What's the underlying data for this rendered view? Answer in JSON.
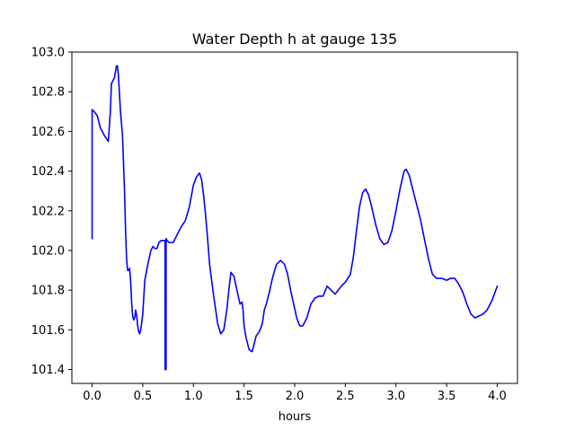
{
  "chart_data": {
    "type": "line",
    "title": "Water Depth h at gauge 135",
    "xlabel": "hours",
    "ylabel": "",
    "xlim": [
      -0.2,
      4.2
    ],
    "ylim": [
      101.33,
      103.0
    ],
    "xticks": [
      0.0,
      0.5,
      1.0,
      1.5,
      2.0,
      2.5,
      3.0,
      3.5,
      4.0
    ],
    "xtick_labels": [
      "0.0",
      "0.5",
      "1.0",
      "1.5",
      "2.0",
      "2.5",
      "3.0",
      "3.5",
      "4.0"
    ],
    "yticks": [
      101.4,
      101.6,
      101.8,
      102.0,
      102.2,
      102.4,
      102.6,
      102.8,
      103.0
    ],
    "ytick_labels": [
      "101.4",
      "101.6",
      "101.8",
      "102.0",
      "102.2",
      "102.4",
      "102.6",
      "102.8",
      "103.0"
    ],
    "grid": false,
    "series": [
      {
        "color": "#0000ff",
        "x": [
          0.0,
          0.0,
          0.02,
          0.05,
          0.08,
          0.12,
          0.16,
          0.18,
          0.19,
          0.2,
          0.22,
          0.24,
          0.25,
          0.26,
          0.28,
          0.3,
          0.32,
          0.33,
          0.34,
          0.35,
          0.36,
          0.37,
          0.38,
          0.39,
          0.4,
          0.41,
          0.42,
          0.43,
          0.44,
          0.45,
          0.46,
          0.47,
          0.48,
          0.5,
          0.52,
          0.55,
          0.58,
          0.6,
          0.62,
          0.64,
          0.66,
          0.68,
          0.7,
          0.72,
          0.72,
          0.73,
          0.73,
          0.74,
          0.76,
          0.8,
          0.84,
          0.88,
          0.92,
          0.96,
          1.0,
          1.03,
          1.06,
          1.08,
          1.1,
          1.12,
          1.14,
          1.16,
          1.2,
          1.24,
          1.27,
          1.3,
          1.33,
          1.35,
          1.37,
          1.4,
          1.43,
          1.46,
          1.48,
          1.49,
          1.5,
          1.52,
          1.55,
          1.58,
          1.6,
          1.62,
          1.65,
          1.68,
          1.7,
          1.72,
          1.75,
          1.78,
          1.82,
          1.86,
          1.9,
          1.93,
          1.96,
          1.99,
          2.02,
          2.05,
          2.08,
          2.12,
          2.16,
          2.2,
          2.24,
          2.28,
          2.32,
          2.36,
          2.4,
          2.43,
          2.46,
          2.5,
          2.55,
          2.58,
          2.61,
          2.64,
          2.67,
          2.7,
          2.73,
          2.76,
          2.8,
          2.84,
          2.88,
          2.92,
          2.96,
          3.0,
          3.04,
          3.08,
          3.1,
          3.13,
          3.16,
          3.2,
          3.24,
          3.28,
          3.32,
          3.36,
          3.4,
          3.45,
          3.5,
          3.54,
          3.58,
          3.62,
          3.66,
          3.7,
          3.74,
          3.78,
          3.82,
          3.86,
          3.9,
          3.95,
          4.0
        ],
        "y": [
          102.06,
          102.71,
          102.7,
          102.68,
          102.62,
          102.58,
          102.55,
          102.7,
          102.84,
          102.85,
          102.87,
          102.93,
          102.93,
          102.88,
          102.7,
          102.58,
          102.3,
          102.1,
          101.96,
          101.9,
          101.9,
          101.91,
          101.85,
          101.74,
          101.67,
          101.65,
          101.66,
          101.7,
          101.67,
          101.62,
          101.59,
          101.58,
          101.6,
          101.68,
          101.85,
          101.93,
          102.0,
          102.02,
          102.01,
          102.01,
          102.04,
          102.05,
          102.05,
          102.05,
          101.4,
          101.4,
          102.06,
          102.05,
          102.04,
          102.04,
          102.08,
          102.12,
          102.15,
          102.22,
          102.33,
          102.37,
          102.39,
          102.36,
          102.28,
          102.18,
          102.06,
          101.93,
          101.77,
          101.63,
          101.58,
          101.6,
          101.7,
          101.8,
          101.89,
          101.87,
          101.8,
          101.73,
          101.74,
          101.7,
          101.62,
          101.56,
          101.5,
          101.49,
          101.53,
          101.57,
          101.59,
          101.63,
          101.7,
          101.73,
          101.79,
          101.86,
          101.93,
          101.95,
          101.93,
          101.88,
          101.8,
          101.73,
          101.66,
          101.62,
          101.62,
          101.66,
          101.73,
          101.76,
          101.77,
          101.77,
          101.82,
          101.8,
          101.78,
          101.8,
          101.82,
          101.84,
          101.88,
          101.97,
          102.1,
          102.22,
          102.29,
          102.31,
          102.28,
          102.22,
          102.13,
          102.06,
          102.03,
          102.04,
          102.1,
          102.2,
          102.31,
          102.4,
          102.41,
          102.38,
          102.32,
          102.24,
          102.16,
          102.06,
          101.96,
          101.88,
          101.86,
          101.86,
          101.85,
          101.86,
          101.86,
          101.83,
          101.79,
          101.73,
          101.68,
          101.66,
          101.67,
          101.68,
          101.7,
          101.75,
          101.82
        ]
      }
    ]
  }
}
